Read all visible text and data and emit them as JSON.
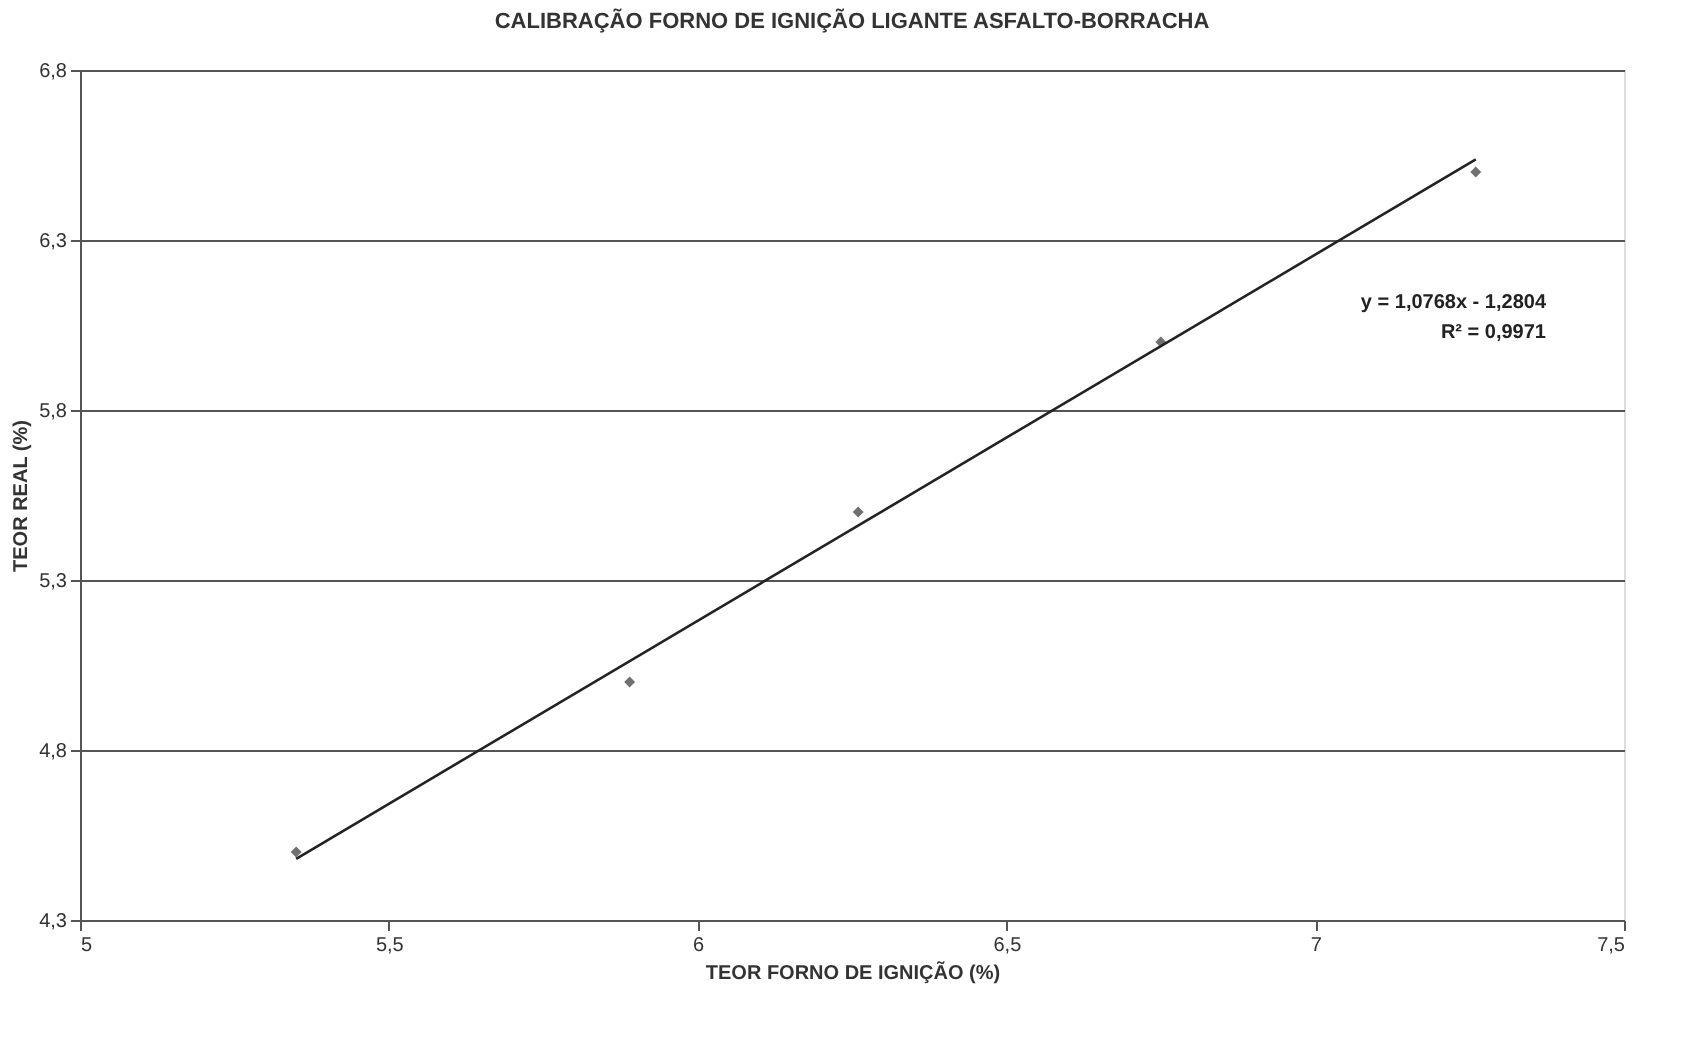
{
  "chart_data": {
    "type": "scatter",
    "title": "CALIBRAÇÃO FORNO DE IGNIÇÃO LIGANTE ASFALTO-BORRACHA",
    "xlabel": "TEOR FORNO DE IGNIÇÃO (%)",
    "ylabel": "TEOR REAL (%)",
    "series": [
      {
        "color": "#333333",
        "marker": "diamond",
        "x": [
          5.35,
          5.89,
          6.26,
          6.75,
          7.26
        ],
        "values": [
          4.5,
          5.0,
          5.5,
          6.0,
          6.5
        ]
      },
      {
        "type": "line",
        "color": "#222222",
        "x": [
          5.35,
          7.26
        ],
        "values": [
          4.48,
          6.537
        ]
      }
    ],
    "xlim": [
      5,
      7.5
    ],
    "xticks": [
      {
        "value": 5,
        "label": "5"
      },
      {
        "value": 5.5,
        "label": "5,5"
      },
      {
        "value": 6,
        "label": "6"
      },
      {
        "value": 6.5,
        "label": "6,5"
      },
      {
        "value": 7,
        "label": "7"
      },
      {
        "value": 7.5,
        "label": "7,5"
      }
    ],
    "ylim": [
      4.3,
      6.8
    ],
    "yticks": [
      {
        "value": 4.3,
        "label": "4,3"
      },
      {
        "value": 4.8,
        "label": "4,8"
      },
      {
        "value": 5.3,
        "label": "5,3"
      },
      {
        "value": 5.8,
        "label": "5,8"
      },
      {
        "value": 6.3,
        "label": "6,3"
      },
      {
        "value": 6.8,
        "label": "6,8"
      }
    ],
    "grid": "y",
    "annotations": [
      "y = 1,0768x - 1,2804",
      "R² = 0,9971"
    ]
  }
}
